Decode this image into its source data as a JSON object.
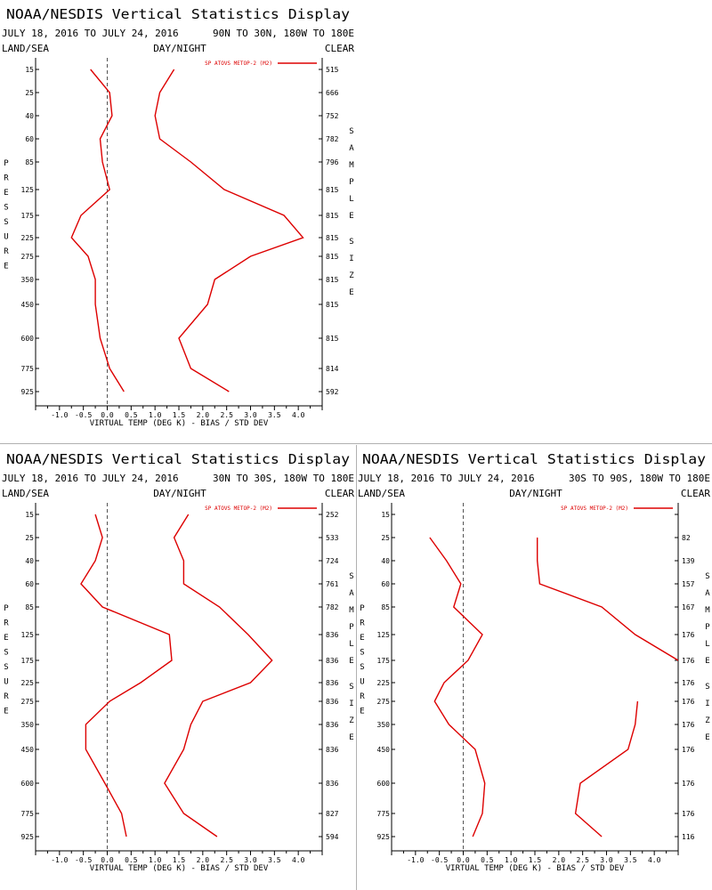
{
  "colors": {
    "series": "#dd0000",
    "axis": "#000000",
    "zero_line": "#555555",
    "divider": "#b0b0b0"
  },
  "chart_data": [
    {
      "type": "line",
      "title": "NOAA/NESDIS Vertical Statistics Display",
      "date_range": "JULY 18, 2016 TO JULY 24, 2016",
      "region": "90N TO 30N, 180W TO 180E",
      "left_header": "LAND/SEA",
      "center_header": "DAY/NIGHT",
      "right_header": "CLEAR",
      "xlabel": "VIRTUAL TEMP (DEG K) - BIAS / STD DEV",
      "ylabel": "PRESSURE",
      "right_axis_label": "SAMPLE SIZE",
      "legend": "SP ATOVS METOP-2 (M2)",
      "legend_position": "top-right",
      "xlim": [
        -1.5,
        4.5
      ],
      "x_ticks": [
        "-1.0",
        "-0.5",
        "0.0",
        "0.5",
        "1.0",
        "1.5",
        "2.0",
        "2.5",
        "3.0",
        "3.5",
        "4.0"
      ],
      "pressure_levels": [
        "15",
        "25",
        "40",
        "60",
        "85",
        "125",
        "175",
        "225",
        "275",
        "350",
        "450",
        "600",
        "775",
        "925"
      ],
      "sample_sizes": [
        "515",
        "666",
        "752",
        "782",
        "796",
        "815",
        "815",
        "815",
        "815",
        "815",
        "815",
        "815",
        "814",
        "592"
      ],
      "series": [
        {
          "values": [
            -0.35,
            0.05,
            0.1,
            -0.15,
            -0.1,
            0.05,
            -0.55,
            -0.75,
            -0.4,
            -0.25,
            -0.25,
            -0.15,
            0.05,
            0.35
          ]
        },
        {
          "values": [
            1.4,
            1.1,
            1.0,
            1.1,
            1.75,
            2.45,
            3.7,
            4.1,
            3.0,
            2.25,
            2.1,
            1.5,
            1.75,
            2.55
          ]
        }
      ]
    },
    {
      "type": "line",
      "title": "NOAA/NESDIS Vertical Statistics Display",
      "date_range": "JULY 18, 2016 TO JULY 24, 2016",
      "region": "30N TO 30S, 180W TO 180E",
      "left_header": "LAND/SEA",
      "center_header": "DAY/NIGHT",
      "right_header": "CLEAR",
      "xlabel": "VIRTUAL TEMP (DEG K) - BIAS / STD DEV",
      "ylabel": "PRESSURE",
      "right_axis_label": "SAMPLE SIZE",
      "legend": "SP ATOVS METOP-2 (M2)",
      "legend_position": "top-right",
      "xlim": [
        -1.5,
        4.5
      ],
      "x_ticks": [
        "-1.0",
        "-0.5",
        "0.0",
        "0.5",
        "1.0",
        "1.5",
        "2.0",
        "2.5",
        "3.0",
        "3.5",
        "4.0"
      ],
      "pressure_levels": [
        "15",
        "25",
        "40",
        "60",
        "85",
        "125",
        "175",
        "225",
        "275",
        "350",
        "450",
        "600",
        "775",
        "925"
      ],
      "sample_sizes": [
        "252",
        "533",
        "724",
        "761",
        "782",
        "836",
        "836",
        "836",
        "836",
        "836",
        "836",
        "836",
        "827",
        "594"
      ],
      "series": [
        {
          "values": [
            -0.25,
            -0.1,
            -0.25,
            -0.55,
            -0.1,
            1.3,
            1.35,
            0.7,
            0.05,
            -0.45,
            -0.45,
            -0.05,
            0.3,
            0.4
          ]
        },
        {
          "values": [
            1.7,
            1.4,
            1.6,
            1.6,
            2.35,
            2.95,
            3.45,
            3.0,
            2.0,
            1.75,
            1.6,
            1.2,
            1.6,
            2.3
          ]
        }
      ]
    },
    {
      "type": "line",
      "title": "NOAA/NESDIS Vertical Statistics Display",
      "date_range": "JULY 18, 2016 TO JULY 24, 2016",
      "region": "30S TO 90S, 180W TO 180E",
      "left_header": "LAND/SEA",
      "center_header": "DAY/NIGHT",
      "right_header": "CLEAR",
      "xlabel": "VIRTUAL TEMP (DEG K) - BIAS / STD DEV",
      "ylabel": "PRESSURE",
      "right_axis_label": "SAMPLE SIZE",
      "legend": "SP ATOVS METOP-2 (M2)",
      "legend_position": "top-right",
      "xlim": [
        -1.5,
        4.5
      ],
      "x_ticks": [
        "-1.0",
        "-0.5",
        "0.0",
        "0.5",
        "1.0",
        "1.5",
        "2.0",
        "2.5",
        "3.0",
        "3.5",
        "4.0"
      ],
      "pressure_levels": [
        "15",
        "25",
        "40",
        "60",
        "85",
        "125",
        "175",
        "225",
        "275",
        "350",
        "450",
        "600",
        "775",
        "925"
      ],
      "sample_sizes": [
        "",
        "82",
        "139",
        "157",
        "167",
        "176",
        "176",
        "176",
        "176",
        "176",
        "176",
        "176",
        "176",
        "116"
      ],
      "series": [
        {
          "values": [
            null,
            -0.7,
            -0.35,
            -0.05,
            -0.2,
            0.4,
            0.1,
            -0.4,
            -0.6,
            -0.3,
            0.25,
            0.45,
            0.4,
            0.2
          ]
        },
        {
          "values": [
            null,
            1.55,
            1.55,
            1.6,
            2.9,
            3.6,
            4.5,
            null,
            3.65,
            3.6,
            3.45,
            2.45,
            2.35,
            2.9
          ]
        }
      ]
    }
  ]
}
